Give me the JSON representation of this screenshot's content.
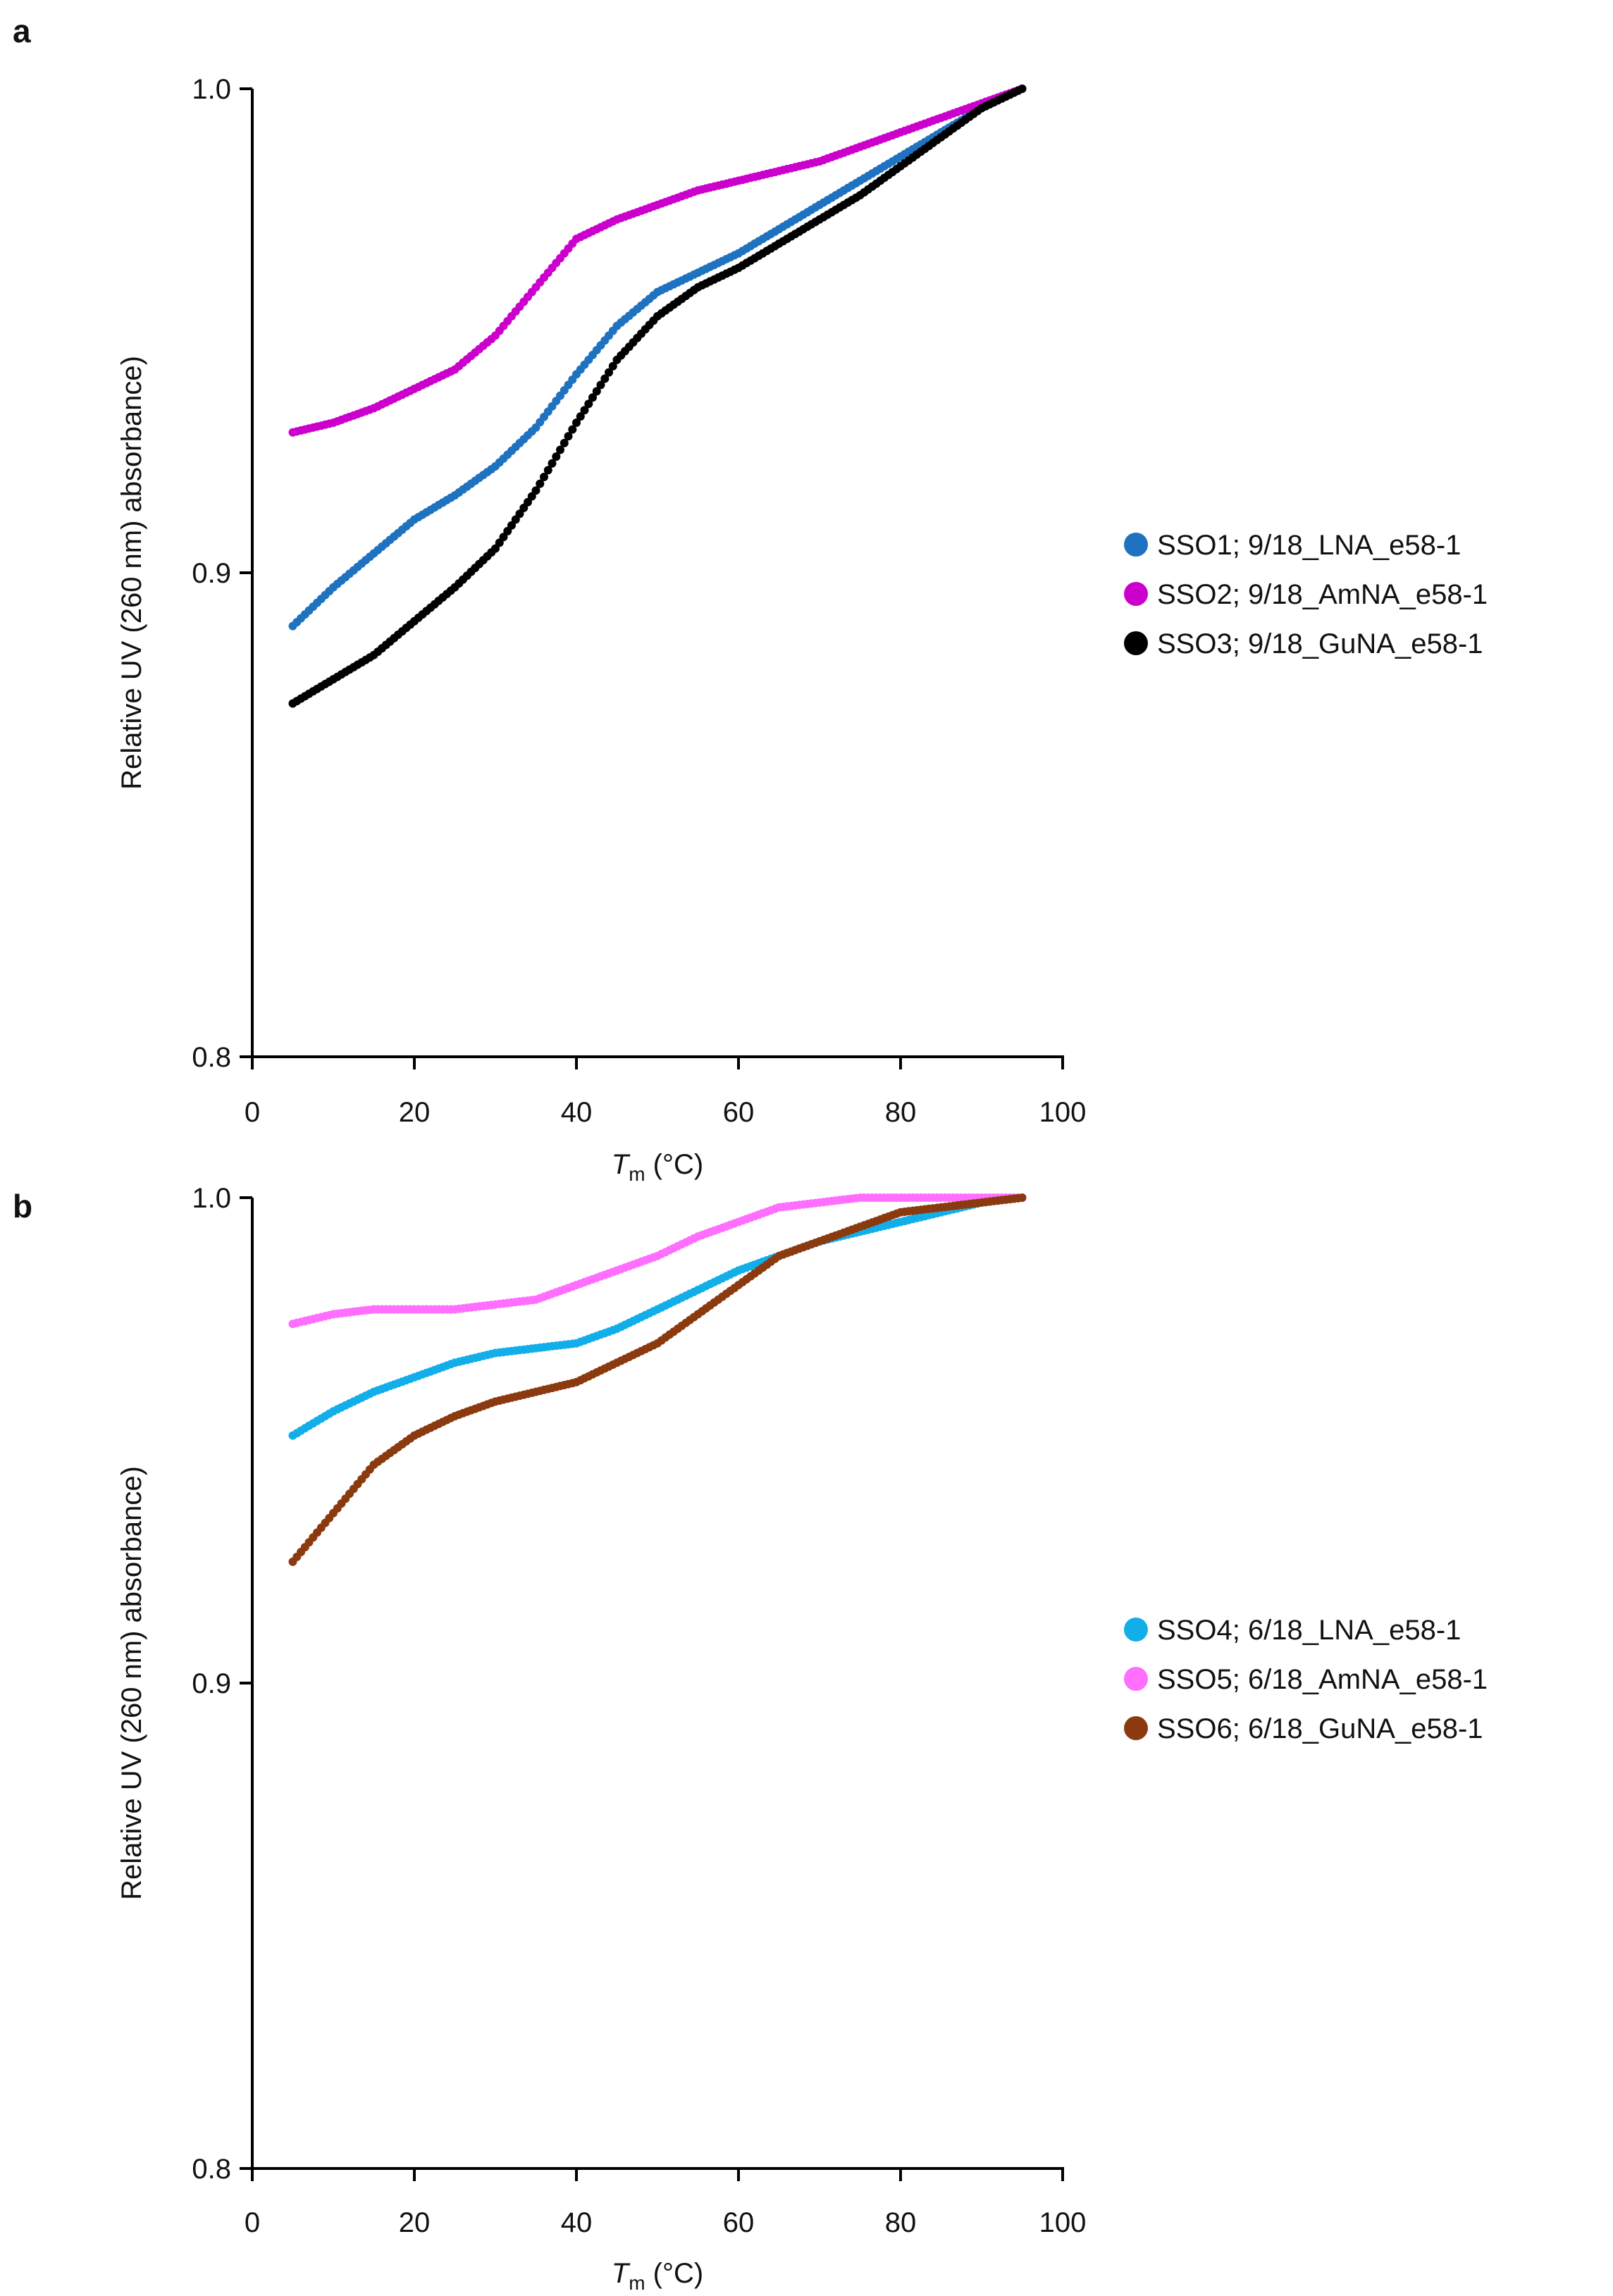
{
  "chart_data": [
    {
      "type": "scatter",
      "panel_label": "a",
      "title": "",
      "xlabel_italic": "T",
      "xlabel_subscript": "m",
      "xlabel_unit": " (°C)",
      "ylabel": "Relative UV (260 nm) absorbance)",
      "xlim": [
        0,
        100
      ],
      "ylim": [
        0.8,
        1.0
      ],
      "xticks": [
        0,
        20,
        40,
        60,
        80,
        100
      ],
      "xtick_labels": [
        "0",
        "20",
        "40",
        "60",
        "80",
        "100"
      ],
      "yticks": [
        0.8,
        0.9,
        1.0
      ],
      "ytick_labels": [
        "0.8",
        "0.9",
        "1.0"
      ],
      "grid": false,
      "legend_position": "right",
      "x_range_points": [
        5,
        95
      ],
      "series": [
        {
          "name": "SSO1; 9/18_LNA_e58-1",
          "color": "#1F72BF",
          "points": [
            [
              5,
              0.889
            ],
            [
              10,
              0.897
            ],
            [
              15,
              0.904
            ],
            [
              20,
              0.911
            ],
            [
              25,
              0.916
            ],
            [
              30,
              0.922
            ],
            [
              35,
              0.93
            ],
            [
              40,
              0.941
            ],
            [
              45,
              0.951
            ],
            [
              50,
              0.958
            ],
            [
              55,
              0.962
            ],
            [
              60,
              0.966
            ],
            [
              65,
              0.971
            ],
            [
              70,
              0.976
            ],
            [
              75,
              0.981
            ],
            [
              80,
              0.986
            ],
            [
              85,
              0.991
            ],
            [
              90,
              0.996
            ],
            [
              95,
              1.0
            ]
          ]
        },
        {
          "name": "SSO2; 9/18_AmNA_e58-1",
          "color": "#CC00CC",
          "points": [
            [
              5,
              0.929
            ],
            [
              10,
              0.931
            ],
            [
              15,
              0.934
            ],
            [
              20,
              0.938
            ],
            [
              25,
              0.942
            ],
            [
              30,
              0.949
            ],
            [
              35,
              0.959
            ],
            [
              40,
              0.969
            ],
            [
              45,
              0.973
            ],
            [
              50,
              0.976
            ],
            [
              55,
              0.979
            ],
            [
              60,
              0.981
            ],
            [
              65,
              0.983
            ],
            [
              70,
              0.985
            ],
            [
              75,
              0.988
            ],
            [
              80,
              0.991
            ],
            [
              85,
              0.994
            ],
            [
              90,
              0.997
            ],
            [
              95,
              1.0
            ]
          ]
        },
        {
          "name": "SSO3; 9/18_GuNA_e58-1",
          "color": "#000000",
          "points": [
            [
              5,
              0.873
            ],
            [
              10,
              0.878
            ],
            [
              15,
              0.883
            ],
            [
              20,
              0.89
            ],
            [
              25,
              0.897
            ],
            [
              30,
              0.905
            ],
            [
              35,
              0.917
            ],
            [
              40,
              0.931
            ],
            [
              45,
              0.944
            ],
            [
              50,
              0.953
            ],
            [
              55,
              0.959
            ],
            [
              60,
              0.963
            ],
            [
              65,
              0.968
            ],
            [
              70,
              0.973
            ],
            [
              75,
              0.978
            ],
            [
              80,
              0.984
            ],
            [
              85,
              0.99
            ],
            [
              90,
              0.996
            ],
            [
              95,
              1.0
            ]
          ]
        }
      ]
    },
    {
      "type": "scatter",
      "panel_label": "b",
      "title": "",
      "xlabel_italic": "T",
      "xlabel_subscript": "m",
      "xlabel_unit": " (°C)",
      "ylabel": "Relative UV (260 nm) absorbance)",
      "xlim": [
        0,
        100
      ],
      "ylim": [
        0.8,
        1.0
      ],
      "xticks": [
        0,
        20,
        40,
        60,
        80,
        100
      ],
      "xtick_labels": [
        "0",
        "20",
        "40",
        "60",
        "80",
        "100"
      ],
      "yticks": [
        0.8,
        0.9,
        1.0
      ],
      "ytick_labels": [
        "0.8",
        "0.9",
        "1.0"
      ],
      "grid": false,
      "legend_position": "right",
      "x_range_points": [
        5,
        95
      ],
      "series": [
        {
          "name": "SSO4; 6/18_LNA_e58-1",
          "color": "#12AEEA",
          "points": [
            [
              5,
              0.951
            ],
            [
              10,
              0.956
            ],
            [
              15,
              0.96
            ],
            [
              20,
              0.963
            ],
            [
              25,
              0.966
            ],
            [
              30,
              0.968
            ],
            [
              35,
              0.969
            ],
            [
              40,
              0.97
            ],
            [
              45,
              0.973
            ],
            [
              50,
              0.977
            ],
            [
              55,
              0.981
            ],
            [
              60,
              0.985
            ],
            [
              65,
              0.988
            ],
            [
              70,
              0.991
            ],
            [
              75,
              0.993
            ],
            [
              80,
              0.995
            ],
            [
              85,
              0.997
            ],
            [
              90,
              0.999
            ],
            [
              95,
              1.0
            ]
          ]
        },
        {
          "name": "SSO5; 6/18_AmNA_e58-1",
          "color": "#FF6EFF",
          "points": [
            [
              5,
              0.974
            ],
            [
              10,
              0.976
            ],
            [
              15,
              0.977
            ],
            [
              20,
              0.977
            ],
            [
              25,
              0.977
            ],
            [
              30,
              0.978
            ],
            [
              35,
              0.979
            ],
            [
              40,
              0.982
            ],
            [
              45,
              0.985
            ],
            [
              50,
              0.988
            ],
            [
              55,
              0.992
            ],
            [
              60,
              0.995
            ],
            [
              65,
              0.998
            ],
            [
              70,
              0.999
            ],
            [
              75,
              1.0
            ],
            [
              80,
              1.0
            ],
            [
              85,
              1.0
            ],
            [
              90,
              1.0
            ],
            [
              95,
              1.0
            ]
          ]
        },
        {
          "name": "SSO6; 6/18_GuNA_e58-1",
          "color": "#8B3A0F",
          "points": [
            [
              5,
              0.925
            ],
            [
              10,
              0.935
            ],
            [
              15,
              0.945
            ],
            [
              20,
              0.951
            ],
            [
              25,
              0.955
            ],
            [
              30,
              0.958
            ],
            [
              35,
              0.96
            ],
            [
              40,
              0.962
            ],
            [
              45,
              0.966
            ],
            [
              50,
              0.97
            ],
            [
              55,
              0.976
            ],
            [
              60,
              0.982
            ],
            [
              65,
              0.988
            ],
            [
              70,
              0.991
            ],
            [
              75,
              0.994
            ],
            [
              80,
              0.997
            ],
            [
              85,
              0.998
            ],
            [
              90,
              0.999
            ],
            [
              95,
              1.0
            ]
          ]
        }
      ]
    }
  ]
}
